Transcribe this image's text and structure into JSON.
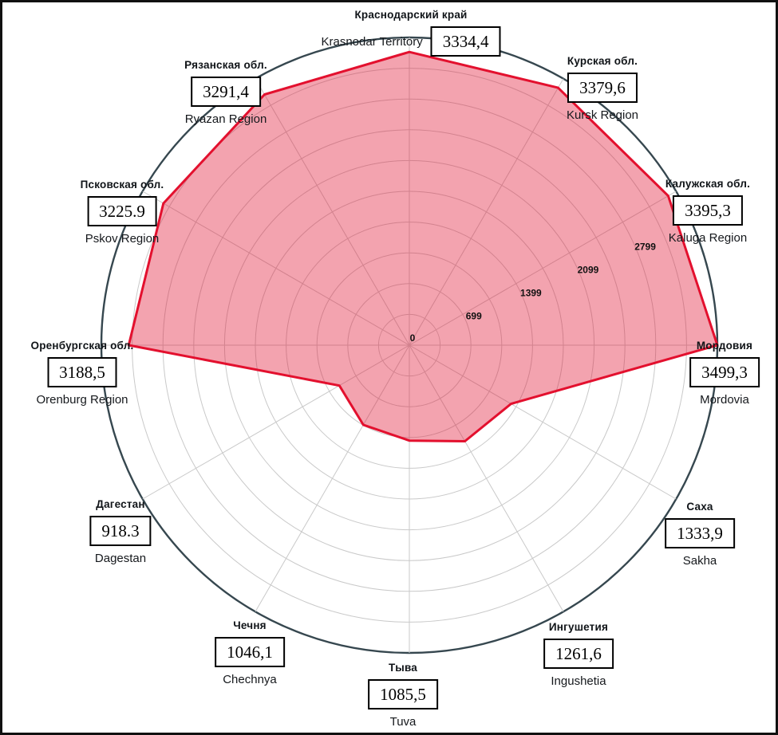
{
  "chart_data": {
    "type": "radar",
    "title": "",
    "categories": [
      {
        "ru": "Краснодарский край",
        "en": "Krasnodar Territory",
        "value": 3334.4,
        "value_label": "3334,4"
      },
      {
        "ru": "Курская обл.",
        "en": "Kursk Region",
        "value": 3379.6,
        "value_label": "3379,6"
      },
      {
        "ru": "Калужская обл.",
        "en": "Kaluga Region",
        "value": 3395.3,
        "value_label": "3395,3"
      },
      {
        "ru": "Мордовия",
        "en": "Mordovia",
        "value": 3499.3,
        "value_label": "3499,3"
      },
      {
        "ru": "Саха",
        "en": "Sakha",
        "value": 1333.9,
        "value_label": "1333,9"
      },
      {
        "ru": "Ингушетия",
        "en": "Ingushetia",
        "value": 1261.6,
        "value_label": "1261,6"
      },
      {
        "ru": "Тыва",
        "en": "Tuva",
        "value": 1085.5,
        "value_label": "1085,5"
      },
      {
        "ru": "Чечня",
        "en": "Chechnya",
        "value": 1046.1,
        "value_label": "1046,1"
      },
      {
        "ru": "Дагестан",
        "en": "Dagestan",
        "value": 918.3,
        "value_label": "918.3"
      },
      {
        "ru": "Оренбургская обл.",
        "en": "Orenburg Region",
        "value": 3188.5,
        "value_label": "3188,5"
      },
      {
        "ru": "Псковская обл.",
        "en": "Pskov Region",
        "value": 3225.9,
        "value_label": "3225.9"
      },
      {
        "ru": "Рязанская обл.",
        "en": "Ryazan Region",
        "value": 3291.4,
        "value_label": "3291,4"
      }
    ],
    "axis_ticks": [
      {
        "label": "0",
        "value": 0
      },
      {
        "label": "699",
        "value": 699
      },
      {
        "label": "1399",
        "value": 1399
      },
      {
        "label": "2099",
        "value": 2099
      },
      {
        "label": "2799",
        "value": 2799
      }
    ],
    "scale": {
      "min": 0,
      "max": 3499,
      "rings": 10
    },
    "legend": null,
    "grid": true,
    "style": {
      "fill_color": "rgba(226, 24, 56, 0.40)",
      "stroke_color": "#e3102e",
      "grid_color": "#c9c9c9",
      "outer_ring_color": "#36474f",
      "tick_text_color": "#111111"
    }
  }
}
